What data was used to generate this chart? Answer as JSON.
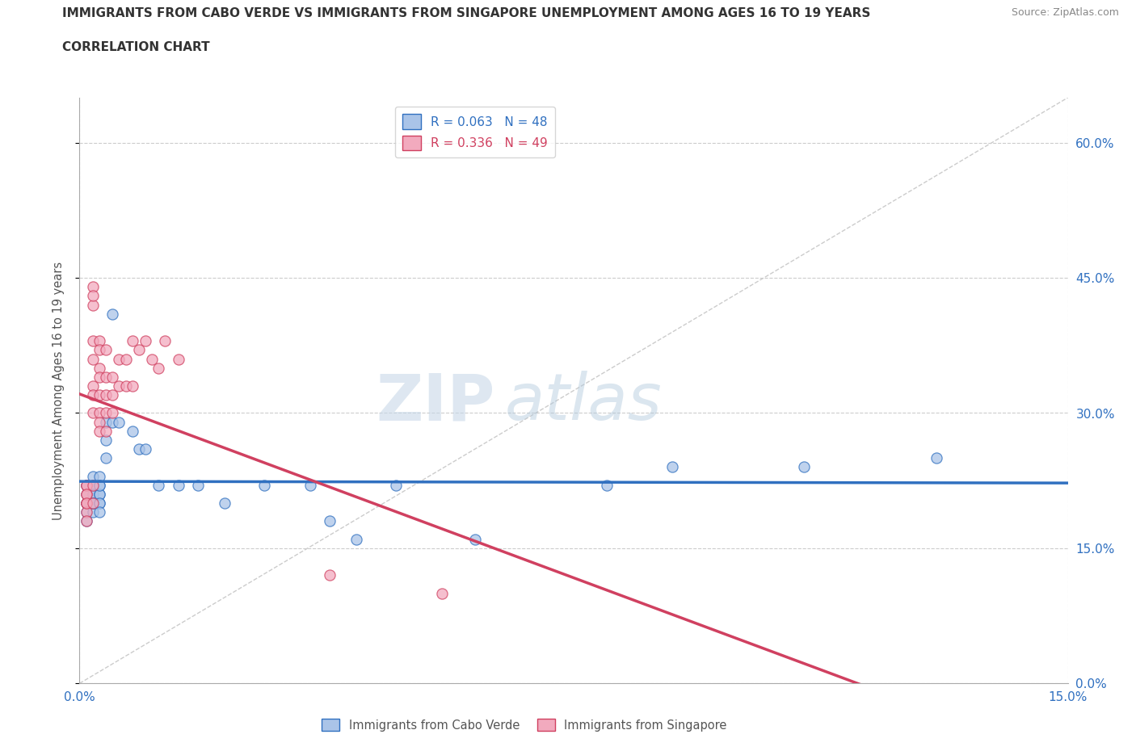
{
  "title_line1": "IMMIGRANTS FROM CABO VERDE VS IMMIGRANTS FROM SINGAPORE UNEMPLOYMENT AMONG AGES 16 TO 19 YEARS",
  "title_line2": "CORRELATION CHART",
  "source": "Source: ZipAtlas.com",
  "ylabel": "Unemployment Among Ages 16 to 19 years",
  "xlim": [
    0.0,
    0.15
  ],
  "ylim": [
    0.0,
    0.65
  ],
  "ytick_labels": [
    "0.0%",
    "15.0%",
    "30.0%",
    "45.0%",
    "60.0%"
  ],
  "ytick_vals": [
    0.0,
    0.15,
    0.3,
    0.45,
    0.6
  ],
  "xtick_labels": [
    "0.0%",
    "15.0%"
  ],
  "xtick_vals": [
    0.0,
    0.15
  ],
  "legend1_label": "R = 0.063   N = 48",
  "legend2_label": "R = 0.336   N = 49",
  "legend1_color": "#aac4e8",
  "legend2_color": "#f2aabe",
  "trendline1_color": "#3070c0",
  "trendline2_color": "#d04060",
  "trendline_dashed_color": "#c8c8c8",
  "watermark_zip": "ZIP",
  "watermark_atlas": "atlas",
  "background_color": "#ffffff",
  "cabo_verde_x": [
    0.001,
    0.001,
    0.001,
    0.001,
    0.001,
    0.001,
    0.001,
    0.001,
    0.002,
    0.002,
    0.002,
    0.002,
    0.002,
    0.002,
    0.002,
    0.002,
    0.002,
    0.003,
    0.003,
    0.003,
    0.003,
    0.003,
    0.003,
    0.003,
    0.003,
    0.004,
    0.004,
    0.004,
    0.005,
    0.005,
    0.006,
    0.008,
    0.009,
    0.01,
    0.012,
    0.015,
    0.018,
    0.022,
    0.028,
    0.035,
    0.038,
    0.042,
    0.048,
    0.06,
    0.08,
    0.09,
    0.11,
    0.13
  ],
  "cabo_verde_y": [
    0.21,
    0.2,
    0.22,
    0.19,
    0.2,
    0.18,
    0.2,
    0.22,
    0.21,
    0.22,
    0.19,
    0.2,
    0.22,
    0.21,
    0.2,
    0.23,
    0.2,
    0.21,
    0.2,
    0.22,
    0.23,
    0.21,
    0.2,
    0.19,
    0.22,
    0.25,
    0.29,
    0.27,
    0.41,
    0.29,
    0.29,
    0.28,
    0.26,
    0.26,
    0.22,
    0.22,
    0.22,
    0.2,
    0.22,
    0.22,
    0.18,
    0.16,
    0.22,
    0.16,
    0.22,
    0.24,
    0.24,
    0.25
  ],
  "singapore_x": [
    0.001,
    0.001,
    0.001,
    0.001,
    0.001,
    0.001,
    0.001,
    0.001,
    0.001,
    0.002,
    0.002,
    0.002,
    0.002,
    0.002,
    0.002,
    0.002,
    0.002,
    0.002,
    0.002,
    0.003,
    0.003,
    0.003,
    0.003,
    0.003,
    0.003,
    0.003,
    0.003,
    0.004,
    0.004,
    0.004,
    0.004,
    0.004,
    0.005,
    0.005,
    0.005,
    0.006,
    0.006,
    0.007,
    0.007,
    0.008,
    0.008,
    0.009,
    0.01,
    0.011,
    0.012,
    0.013,
    0.015,
    0.038,
    0.055
  ],
  "singapore_y": [
    0.2,
    0.22,
    0.21,
    0.2,
    0.19,
    0.18,
    0.22,
    0.21,
    0.2,
    0.44,
    0.42,
    0.43,
    0.38,
    0.36,
    0.33,
    0.32,
    0.3,
    0.22,
    0.2,
    0.38,
    0.37,
    0.35,
    0.34,
    0.32,
    0.3,
    0.29,
    0.28,
    0.37,
    0.34,
    0.32,
    0.3,
    0.28,
    0.34,
    0.32,
    0.3,
    0.36,
    0.33,
    0.36,
    0.33,
    0.38,
    0.33,
    0.37,
    0.38,
    0.36,
    0.35,
    0.38,
    0.36,
    0.12,
    0.1
  ]
}
